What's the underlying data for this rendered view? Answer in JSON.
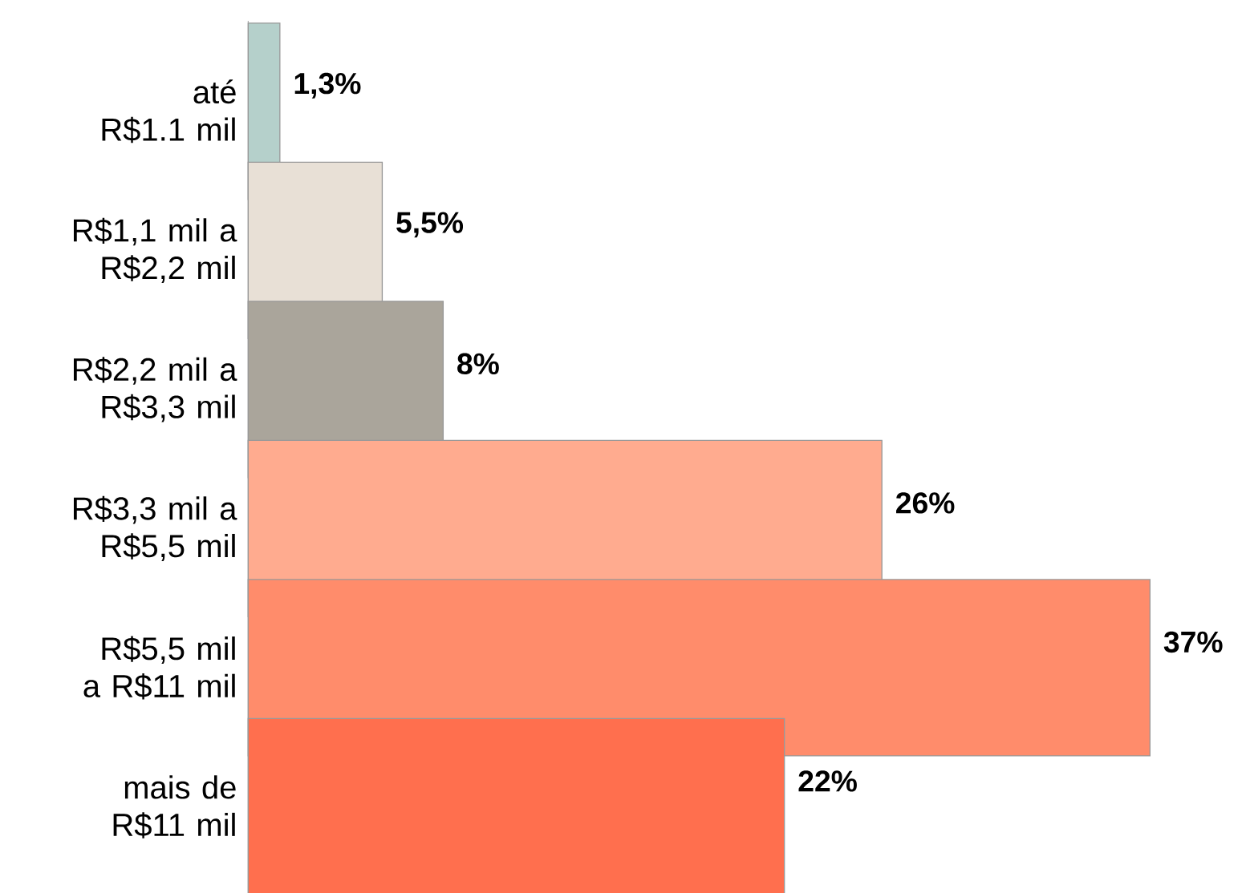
{
  "chart_data": {
    "type": "bar",
    "orientation": "horizontal",
    "categories": [
      "até R$1.1 mil",
      "R$1,1 mil a R$2,2 mil",
      "R$2,2 mil a R$3,3 mil",
      "R$3,3 mil a R$5,5 mil",
      "R$5,5 mil a R$11 mil",
      "mais de R$11 mil"
    ],
    "values": [
      1.3,
      5.5,
      8,
      26,
      37,
      22
    ],
    "colors": [
      "#b5d0cb",
      "#e8e0d6",
      "#aaa59b",
      "#ffab8f",
      "#ff8c6b",
      "#ff6f4e"
    ],
    "value_labels": [
      "**1,3%**",
      "**5,5%**",
      "**8%**",
      "**26%**",
      "**37%**",
      "**22%**"
    ],
    "xlim": [
      0,
      37
    ]
  }
}
